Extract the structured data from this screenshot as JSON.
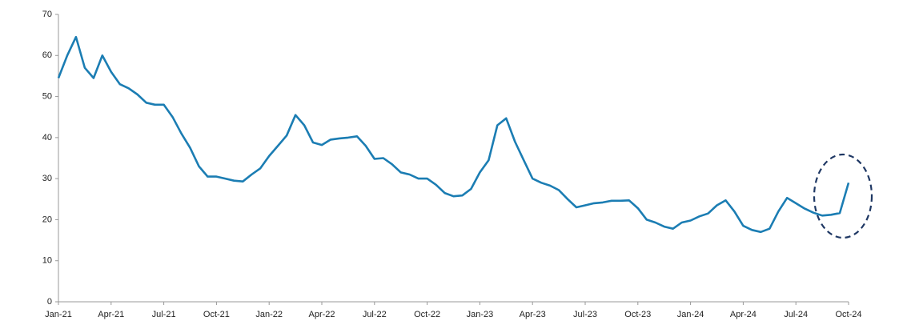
{
  "chart_data": {
    "type": "line",
    "categories": [
      "Jan-21",
      null,
      null,
      null,
      null,
      null,
      "Apr-21",
      null,
      null,
      null,
      null,
      null,
      "Jul-21",
      null,
      null,
      null,
      null,
      null,
      "Oct-21",
      null,
      null,
      null,
      null,
      null,
      "Jan-22",
      null,
      null,
      null,
      null,
      null,
      "Apr-22",
      null,
      null,
      null,
      null,
      null,
      "Jul-22",
      null,
      null,
      null,
      null,
      null,
      "Oct-22",
      null,
      null,
      null,
      null,
      null,
      "Jan-23",
      null,
      null,
      null,
      null,
      null,
      "Apr-23",
      null,
      null,
      null,
      null,
      null,
      "Jul-23",
      null,
      null,
      null,
      null,
      null,
      "Oct-23",
      null,
      null,
      null,
      null,
      null,
      "Jan-24",
      null,
      null,
      null,
      null,
      null,
      "Apr-24",
      null,
      null,
      null,
      null,
      null,
      "Jul-24",
      null,
      null,
      null,
      null,
      null,
      "Oct-24"
    ],
    "values": [
      54.5,
      60,
      64.5,
      57,
      54.5,
      60,
      56,
      53,
      52,
      50.5,
      48.5,
      48,
      48,
      45,
      41,
      37.5,
      33,
      30.5,
      30.5,
      30,
      29.5,
      29.3,
      31,
      32.5,
      35.5,
      38,
      40.5,
      45.5,
      43,
      38.8,
      38.2,
      39.5,
      39.8,
      40,
      40.3,
      38,
      34.8,
      35,
      33.5,
      31.5,
      31,
      30,
      30,
      28.5,
      26.5,
      25.7,
      25.9,
      27.5,
      31.5,
      34.5,
      43,
      44.7,
      39,
      34.5,
      30,
      29,
      28.3,
      27.2,
      25,
      23,
      23.5,
      24,
      24.2,
      24.6,
      24.6,
      24.7,
      22.8,
      20,
      19.3,
      18.3,
      17.8,
      19.3,
      19.8,
      20.8,
      21.5,
      23.5,
      24.7,
      22,
      18.5,
      17.5,
      17,
      17.8,
      22,
      25.3,
      24,
      22.7,
      21.7,
      21,
      21.2,
      21.6,
      29
    ],
    "color": "#1b7db3",
    "ylim": [
      0,
      70
    ],
    "yticks": [
      0,
      10,
      20,
      30,
      40,
      50,
      60,
      70
    ],
    "grid": false
  }
}
